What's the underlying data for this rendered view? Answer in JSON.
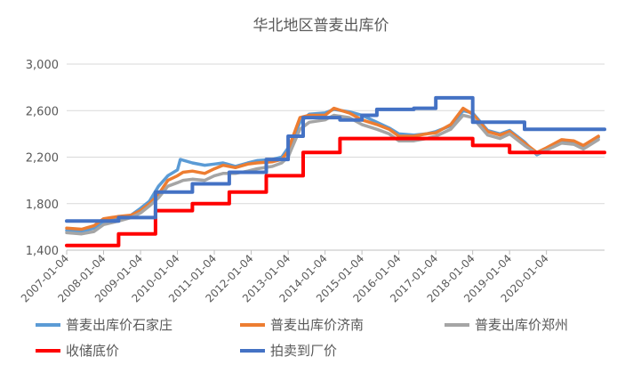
{
  "chart_data": {
    "type": "line",
    "title": "华北地区普麦出库价",
    "xlabel": "",
    "ylabel": "",
    "xlim": [
      "2007-01-04",
      "2021-08-01"
    ],
    "ylim": [
      1400,
      3000
    ],
    "yticks": [
      1400,
      1800,
      2200,
      2600,
      3000
    ],
    "ytick_labels": [
      "1,400",
      "1,800",
      "2,200",
      "2,600",
      "3,000"
    ],
    "xticks": [
      "2007-01-04",
      "2008-01-04",
      "2009-01-04",
      "2010-01-04",
      "2011-01-04",
      "2012-01-04",
      "2013-01-04",
      "2014-01-04",
      "2015-01-04",
      "2016-01-04",
      "2017-01-04",
      "2018-01-04",
      "2019-01-04",
      "2020-01-04"
    ],
    "grid": "horizontal",
    "legend_position": "bottom",
    "series": [
      {
        "name": "普麦出库价石家庄",
        "color": "#5b9bd5",
        "step": false,
        "points": [
          [
            "2007-01-04",
            1570
          ],
          [
            "2007-06-01",
            1560
          ],
          [
            "2007-10-01",
            1590
          ],
          [
            "2008-01-04",
            1640
          ],
          [
            "2008-06-01",
            1680
          ],
          [
            "2008-10-01",
            1700
          ],
          [
            "2009-01-04",
            1760
          ],
          [
            "2009-04-01",
            1820
          ],
          [
            "2009-07-01",
            1950
          ],
          [
            "2009-10-01",
            2040
          ],
          [
            "2010-01-04",
            2090
          ],
          [
            "2010-02-01",
            2180
          ],
          [
            "2010-06-01",
            2150
          ],
          [
            "2010-10-01",
            2130
          ],
          [
            "2011-01-04",
            2140
          ],
          [
            "2011-04-01",
            2150
          ],
          [
            "2011-08-01",
            2120
          ],
          [
            "2011-12-01",
            2150
          ],
          [
            "2012-03-01",
            2170
          ],
          [
            "2012-08-01",
            2180
          ],
          [
            "2012-11-01",
            2200
          ],
          [
            "2013-01-04",
            2280
          ],
          [
            "2013-02-01",
            2320
          ],
          [
            "2013-05-01",
            2500
          ],
          [
            "2013-08-01",
            2570
          ],
          [
            "2014-01-04",
            2580
          ],
          [
            "2014-04-01",
            2610
          ],
          [
            "2014-09-01",
            2590
          ],
          [
            "2015-01-04",
            2560
          ],
          [
            "2015-06-01",
            2500
          ],
          [
            "2015-10-01",
            2450
          ],
          [
            "2016-01-04",
            2400
          ],
          [
            "2016-06-01",
            2390
          ],
          [
            "2016-10-01",
            2400
          ],
          [
            "2017-01-04",
            2420
          ],
          [
            "2017-06-01",
            2470
          ],
          [
            "2017-10-01",
            2600
          ],
          [
            "2018-01-04",
            2580
          ],
          [
            "2018-06-01",
            2430
          ],
          [
            "2018-10-01",
            2400
          ],
          [
            "2019-01-04",
            2430
          ],
          [
            "2019-06-01",
            2330
          ],
          [
            "2019-10-01",
            2220
          ],
          [
            "2020-01-04",
            2260
          ],
          [
            "2020-06-01",
            2340
          ],
          [
            "2020-10-01",
            2330
          ],
          [
            "2021-01-04",
            2290
          ],
          [
            "2021-06-01",
            2370
          ]
        ]
      },
      {
        "name": "普麦出库价济南",
        "color": "#ed7d31",
        "step": false,
        "points": [
          [
            "2007-01-04",
            1590
          ],
          [
            "2007-06-01",
            1580
          ],
          [
            "2007-10-01",
            1610
          ],
          [
            "2008-01-04",
            1670
          ],
          [
            "2008-06-01",
            1690
          ],
          [
            "2008-10-01",
            1700
          ],
          [
            "2009-01-04",
            1740
          ],
          [
            "2009-04-01",
            1800
          ],
          [
            "2009-07-01",
            1880
          ],
          [
            "2009-10-01",
            2000
          ],
          [
            "2010-01-04",
            2040
          ],
          [
            "2010-03-01",
            2070
          ],
          [
            "2010-06-01",
            2080
          ],
          [
            "2010-10-01",
            2060
          ],
          [
            "2011-01-04",
            2100
          ],
          [
            "2011-04-01",
            2130
          ],
          [
            "2011-08-01",
            2110
          ],
          [
            "2011-12-01",
            2140
          ],
          [
            "2012-03-01",
            2150
          ],
          [
            "2012-08-01",
            2160
          ],
          [
            "2012-11-01",
            2180
          ],
          [
            "2013-01-04",
            2250
          ],
          [
            "2013-02-01",
            2330
          ],
          [
            "2013-05-01",
            2540
          ],
          [
            "2013-08-01",
            2560
          ],
          [
            "2014-01-04",
            2560
          ],
          [
            "2014-04-01",
            2620
          ],
          [
            "2014-09-01",
            2580
          ],
          [
            "2015-01-04",
            2520
          ],
          [
            "2015-06-01",
            2480
          ],
          [
            "2015-10-01",
            2440
          ],
          [
            "2016-01-04",
            2380
          ],
          [
            "2016-06-01",
            2380
          ],
          [
            "2016-10-01",
            2400
          ],
          [
            "2017-01-04",
            2410
          ],
          [
            "2017-06-01",
            2480
          ],
          [
            "2017-10-01",
            2620
          ],
          [
            "2018-01-04",
            2570
          ],
          [
            "2018-06-01",
            2420
          ],
          [
            "2018-10-01",
            2390
          ],
          [
            "2019-01-04",
            2420
          ],
          [
            "2019-06-01",
            2320
          ],
          [
            "2019-10-01",
            2240
          ],
          [
            "2020-01-04",
            2280
          ],
          [
            "2020-06-01",
            2350
          ],
          [
            "2020-10-01",
            2340
          ],
          [
            "2021-01-04",
            2300
          ],
          [
            "2021-06-01",
            2380
          ]
        ]
      },
      {
        "name": "普麦出库价郑州",
        "color": "#a5a5a5",
        "step": false,
        "points": [
          [
            "2007-01-04",
            1550
          ],
          [
            "2007-06-01",
            1540
          ],
          [
            "2007-10-01",
            1560
          ],
          [
            "2008-01-04",
            1620
          ],
          [
            "2008-06-01",
            1650
          ],
          [
            "2008-10-01",
            1680
          ],
          [
            "2009-01-04",
            1720
          ],
          [
            "2009-04-01",
            1780
          ],
          [
            "2009-07-01",
            1850
          ],
          [
            "2009-10-01",
            1950
          ],
          [
            "2010-01-04",
            1980
          ],
          [
            "2010-03-01",
            2000
          ],
          [
            "2010-06-01",
            2010
          ],
          [
            "2010-10-01",
            2000
          ],
          [
            "2011-01-04",
            2040
          ],
          [
            "2011-04-01",
            2060
          ],
          [
            "2011-08-01",
            2060
          ],
          [
            "2011-12-01",
            2080
          ],
          [
            "2012-03-01",
            2100
          ],
          [
            "2012-08-01",
            2120
          ],
          [
            "2012-11-01",
            2150
          ],
          [
            "2013-01-04",
            2200
          ],
          [
            "2013-02-01",
            2260
          ],
          [
            "2013-05-01",
            2440
          ],
          [
            "2013-08-01",
            2500
          ],
          [
            "2014-01-04",
            2520
          ],
          [
            "2014-04-01",
            2560
          ],
          [
            "2014-09-01",
            2540
          ],
          [
            "2015-01-04",
            2480
          ],
          [
            "2015-06-01",
            2440
          ],
          [
            "2015-10-01",
            2400
          ],
          [
            "2016-01-04",
            2340
          ],
          [
            "2016-06-01",
            2340
          ],
          [
            "2016-10-01",
            2360
          ],
          [
            "2017-01-04",
            2380
          ],
          [
            "2017-06-01",
            2440
          ],
          [
            "2017-10-01",
            2560
          ],
          [
            "2018-01-04",
            2540
          ],
          [
            "2018-06-01",
            2390
          ],
          [
            "2018-10-01",
            2360
          ],
          [
            "2019-01-04",
            2400
          ],
          [
            "2019-06-01",
            2300
          ],
          [
            "2019-10-01",
            2230
          ],
          [
            "2020-01-04",
            2260
          ],
          [
            "2020-06-01",
            2320
          ],
          [
            "2020-10-01",
            2310
          ],
          [
            "2021-01-04",
            2270
          ],
          [
            "2021-06-01",
            2350
          ]
        ]
      },
      {
        "name": "收储底价",
        "color": "#ff0000",
        "step": true,
        "points": [
          [
            "2007-01-04",
            1440
          ],
          [
            "2008-06-01",
            1540
          ],
          [
            "2009-06-01",
            1740
          ],
          [
            "2010-06-01",
            1800
          ],
          [
            "2011-06-01",
            1900
          ],
          [
            "2012-06-01",
            2040
          ],
          [
            "2013-06-01",
            2240
          ],
          [
            "2014-06-01",
            2360
          ],
          [
            "2018-01-04",
            2300
          ],
          [
            "2019-01-04",
            2240
          ],
          [
            "2021-08-01",
            2240
          ]
        ]
      },
      {
        "name": "拍卖到厂价",
        "color": "#4472c4",
        "step": true,
        "points": [
          [
            "2007-01-04",
            1650
          ],
          [
            "2008-06-01",
            1680
          ],
          [
            "2009-06-01",
            1900
          ],
          [
            "2010-06-01",
            1970
          ],
          [
            "2011-06-01",
            2070
          ],
          [
            "2012-06-01",
            2180
          ],
          [
            "2013-01-04",
            2380
          ],
          [
            "2013-06-01",
            2540
          ],
          [
            "2014-06-01",
            2520
          ],
          [
            "2015-01-04",
            2560
          ],
          [
            "2015-06-01",
            2610
          ],
          [
            "2016-06-01",
            2620
          ],
          [
            "2017-01-04",
            2710
          ],
          [
            "2018-01-04",
            2500
          ],
          [
            "2019-06-01",
            2440
          ],
          [
            "2021-08-01",
            2440
          ]
        ]
      }
    ]
  }
}
